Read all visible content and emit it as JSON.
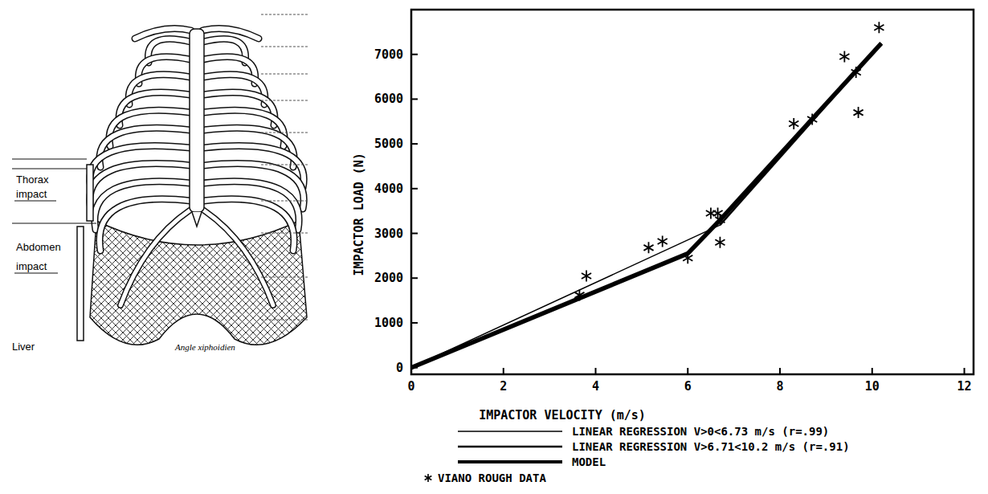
{
  "chart_data": {
    "type": "line",
    "x_label": "IMPACTOR VELOCITY (m/s)",
    "y_label": "IMPACTOR LOAD (N)",
    "xlim": [
      0,
      12.2
    ],
    "ylim": [
      -150,
      8000
    ],
    "xticks": [
      0,
      2,
      4,
      6,
      8,
      10,
      12
    ],
    "yticks": [
      0,
      1000,
      2000,
      3000,
      4000,
      5000,
      6000,
      7000
    ],
    "legend": "bottom",
    "series": [
      {
        "name": "LINEAR REGRESSION V>0<6.73 m/s (r=.99)",
        "type": "line",
        "line_style": "solid",
        "color": "#000000",
        "x": [
          0,
          6.73
        ],
        "values": [
          0,
          3200
        ]
      },
      {
        "name": "LINEAR REGRESSION V>6.71<10.2 m/s (r=.91)",
        "type": "line",
        "line_style": "solid",
        "color": "#000000",
        "x": [
          6.71,
          10.2
        ],
        "values": [
          3200,
          7250
        ]
      },
      {
        "name": "MODEL",
        "type": "line",
        "line_style": "solid",
        "color": "#000000",
        "x": [
          0,
          6,
          6.7,
          10.2
        ],
        "values": [
          0,
          2550,
          3300,
          7250
        ]
      },
      {
        "name": "VIANO ROUGH DATA",
        "type": "scatter",
        "marker": "asterisk",
        "color": "#000000",
        "x": [
          3.65,
          3.8,
          5.15,
          5.45,
          6.0,
          6.5,
          6.65,
          6.7,
          6.7,
          8.3,
          8.7,
          9.4,
          9.65,
          9.7,
          10.15
        ],
        "values": [
          1620,
          2050,
          2680,
          2820,
          2450,
          3450,
          3450,
          3300,
          2800,
          5450,
          5550,
          6950,
          6600,
          5700,
          7600
        ]
      }
    ]
  },
  "diagram": {
    "thorax_impact": [
      "Thorax",
      "impact"
    ],
    "abdomen_impact": [
      "Abdomen",
      "impact"
    ],
    "liver": "Liver",
    "xiphoid": "Angle xiphoidien"
  }
}
